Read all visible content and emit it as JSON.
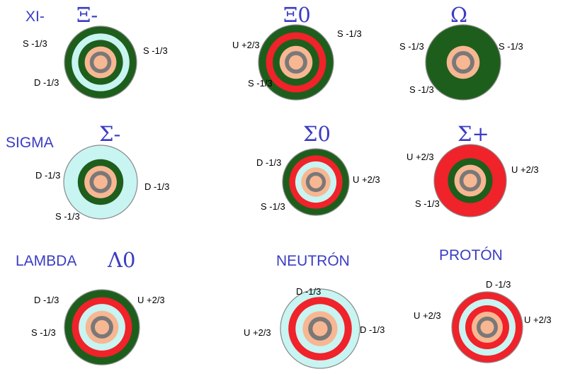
{
  "colors": {
    "green": "#1e5e1c",
    "red": "#f0222a",
    "cyan": "#c8f4f2",
    "peach": "#f7b792",
    "gray": "#7a7878",
    "outline": "#8a8a8a",
    "header": "#3b3cc4"
  },
  "headers": {
    "xi": "XI-",
    "sigma": "SIGMA",
    "lambda": "LAMBDA",
    "neutron": "NEUTRÓN",
    "proton": "PROTÓN"
  },
  "particles": [
    {
      "id": "xi-minus",
      "symbol": "Ξ-",
      "rings": [
        "green",
        "cyan",
        "green",
        "peach"
      ],
      "labels": [
        "S -1/3",
        "S -1/3",
        "D -1/3"
      ]
    },
    {
      "id": "xi-zero",
      "symbol": "Ξ0",
      "rings": [
        "green",
        "red",
        "green",
        "peach"
      ],
      "labels": [
        "U +2/3",
        "S -1/3",
        "S -1/3"
      ]
    },
    {
      "id": "omega",
      "symbol": "Ω",
      "rings": [
        "green",
        "green",
        "green",
        "peach"
      ],
      "labels": [
        "S -1/3",
        "S -1/3",
        "S -1/3"
      ]
    },
    {
      "id": "sigma-minus",
      "symbol": "Σ-",
      "rings": [
        "cyan",
        "cyan",
        "green",
        "peach"
      ],
      "labels": [
        "D -1/3",
        "D -1/3",
        "S -1/3"
      ]
    },
    {
      "id": "sigma-zero",
      "symbol": "Σ0",
      "rings": [
        "green",
        "red",
        "cyan",
        "peach"
      ],
      "labels": [
        "D -1/3",
        "U +2/3",
        "S -1/3"
      ]
    },
    {
      "id": "sigma-plus",
      "symbol": "Σ+",
      "rings": [
        "red",
        "red",
        "green",
        "peach"
      ],
      "labels": [
        "U +2/3",
        "U +2/3",
        "S -1/3"
      ]
    },
    {
      "id": "lambda-zero",
      "symbol": "Λ0",
      "rings": [
        "green",
        "red",
        "cyan",
        "peach"
      ],
      "labels": [
        "D -1/3",
        "U +2/3",
        "S -1/3"
      ]
    },
    {
      "id": "neutron",
      "symbol": "",
      "rings": [
        "cyan",
        "red",
        "cyan",
        "peach"
      ],
      "labels": [
        "D -1/3",
        "U +2/3",
        "D -1/3"
      ]
    },
    {
      "id": "proton",
      "symbol": "",
      "rings": [
        "red",
        "cyan",
        "red",
        "peach"
      ],
      "labels": [
        "D -1/3",
        "U +2/3",
        "U +2/3"
      ]
    }
  ]
}
